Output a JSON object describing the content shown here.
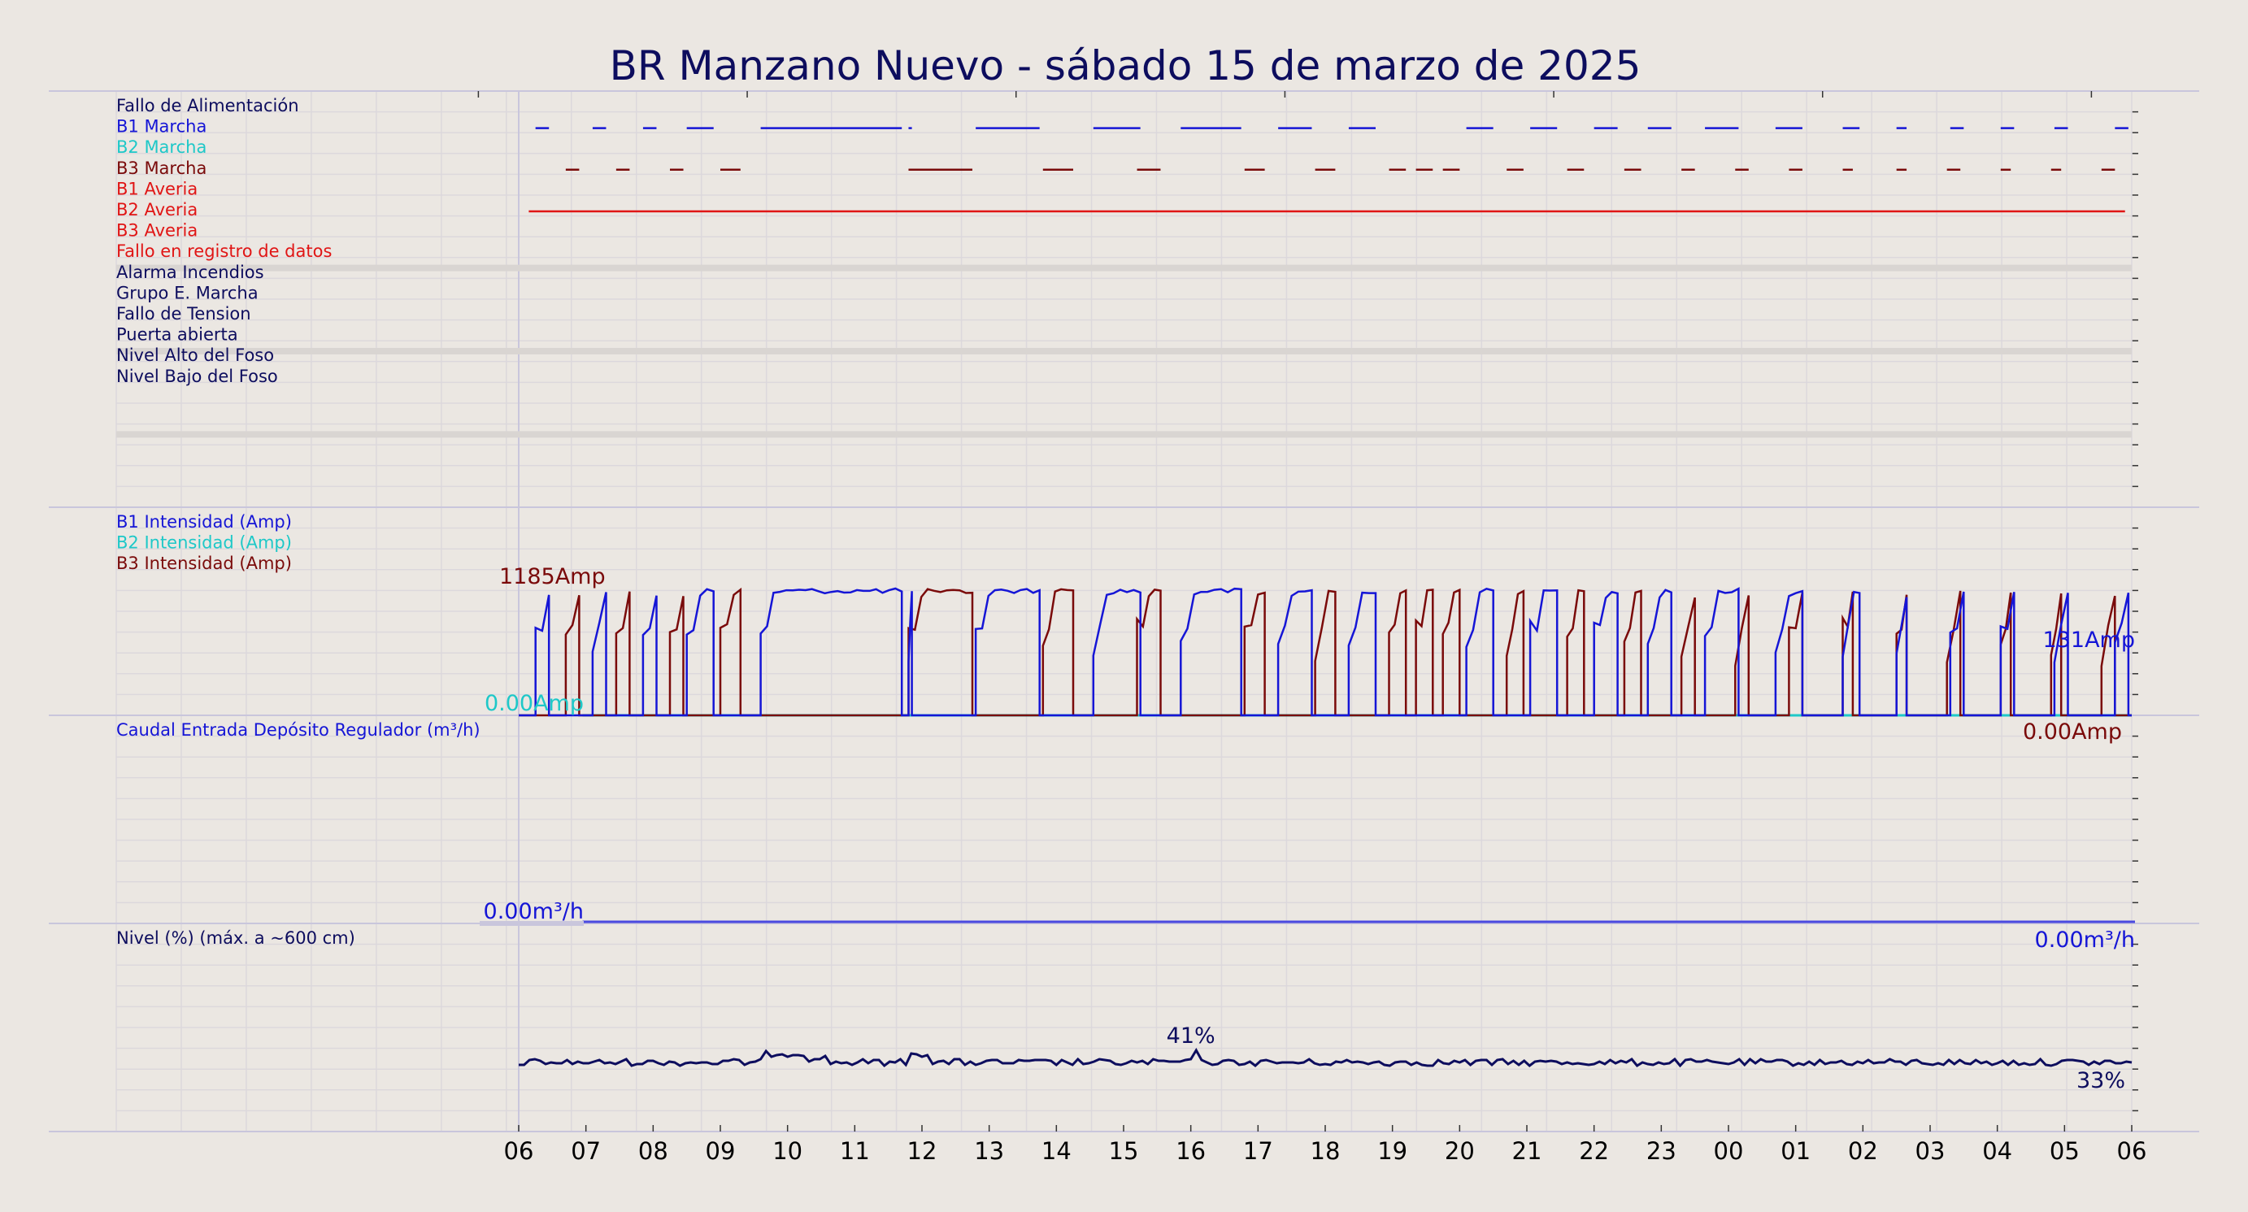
{
  "title": "BR Manzano Nuevo   -   sábado 15 de marzo de 2025",
  "colors": {
    "navy": "#0d0d5e",
    "blue": "#1515d6",
    "cyan": "#1ec8c8",
    "maroon": "#7a0a0a",
    "red": "#e01515",
    "background": "#ebe7e2"
  },
  "chart_data": {
    "type": "line",
    "x_axis": {
      "ticks": [
        "06",
        "07",
        "08",
        "09",
        "10",
        "11",
        "12",
        "13",
        "14",
        "15",
        "16",
        "17",
        "18",
        "19",
        "20",
        "21",
        "22",
        "23",
        "00",
        "01",
        "02",
        "03",
        "04",
        "05",
        "06"
      ],
      "range_hours": [
        0,
        24
      ],
      "grid": true
    },
    "panels": [
      {
        "name": "signals",
        "type": "event-timeline",
        "labels": [
          {
            "text": "Fallo de Alimentación",
            "color": "#0d0d5e"
          },
          {
            "text": "B1 Marcha",
            "color": "#1515d6"
          },
          {
            "text": "B2 Marcha",
            "color": "#1ec8c8"
          },
          {
            "text": "B3 Marcha",
            "color": "#7a0a0a"
          },
          {
            "text": "B1 Averia",
            "color": "#e01515"
          },
          {
            "text": "B2 Averia",
            "color": "#e01515"
          },
          {
            "text": "B3 Averia",
            "color": "#e01515"
          },
          {
            "text": "Fallo en registro de datos",
            "color": "#e01515"
          },
          {
            "text": "Alarma Incendios",
            "color": "#0d0d5e"
          },
          {
            "text": "Grupo E. Marcha",
            "color": "#0d0d5e"
          },
          {
            "text": "Fallo de Tension",
            "color": "#0d0d5e"
          },
          {
            "text": "Puerta abierta",
            "color": "#0d0d5e"
          },
          {
            "text": "Nivel Alto del Foso",
            "color": "#0d0d5e"
          },
          {
            "text": "Nivel Bajo del Foso",
            "color": "#0d0d5e"
          }
        ],
        "events": [
          {
            "signal": "B1 Marcha",
            "intervals": [
              [
                0.25,
                0.45
              ],
              [
                1.1,
                1.3
              ],
              [
                1.85,
                2.05
              ],
              [
                2.5,
                2.9
              ],
              [
                3.6,
                5.7
              ],
              [
                5.8,
                5.85
              ],
              [
                6.8,
                7.75
              ],
              [
                8.55,
                9.25
              ],
              [
                9.85,
                10.75
              ],
              [
                11.3,
                11.8
              ],
              [
                12.35,
                12.75
              ],
              [
                14.1,
                14.5
              ],
              [
                15.05,
                15.45
              ],
              [
                16.0,
                16.35
              ],
              [
                16.8,
                17.15
              ],
              [
                17.65,
                18.15
              ],
              [
                18.7,
                19.1
              ],
              [
                19.7,
                19.95
              ],
              [
                20.5,
                20.65
              ],
              [
                21.3,
                21.5
              ],
              [
                22.05,
                22.25
              ],
              [
                22.85,
                23.05
              ],
              [
                23.75,
                23.95
              ]
            ]
          },
          {
            "signal": "B3 Marcha",
            "intervals": [
              [
                0.7,
                0.9
              ],
              [
                1.45,
                1.65
              ],
              [
                2.25,
                2.45
              ],
              [
                3.0,
                3.3
              ],
              [
                5.8,
                6.75
              ],
              [
                7.8,
                8.25
              ],
              [
                9.2,
                9.55
              ],
              [
                10.8,
                11.1
              ],
              [
                11.85,
                12.15
              ],
              [
                12.95,
                13.2
              ],
              [
                13.35,
                13.6
              ],
              [
                13.75,
                14.0
              ],
              [
                14.7,
                14.95
              ],
              [
                15.6,
                15.85
              ],
              [
                16.45,
                16.7
              ],
              [
                17.3,
                17.5
              ],
              [
                18.1,
                18.3
              ],
              [
                18.9,
                19.1
              ],
              [
                19.7,
                19.85
              ],
              [
                20.5,
                20.65
              ],
              [
                21.25,
                21.45
              ],
              [
                22.05,
                22.2
              ],
              [
                22.8,
                22.95
              ],
              [
                23.55,
                23.75
              ]
            ]
          },
          {
            "signal": "B2 Averia",
            "intervals": [
              [
                0.15,
                23.9
              ]
            ]
          }
        ]
      },
      {
        "name": "intensidad",
        "type": "line",
        "series_labels": [
          {
            "text": "B1 Intensidad (Amp)",
            "color": "#1515d6"
          },
          {
            "text": "B2 Intensidad (Amp)",
            "color": "#1ec8c8"
          },
          {
            "text": "B3 Intensidad (Amp)",
            "color": "#7a0a0a"
          }
        ],
        "annotations": {
          "max": "1185Amp",
          "b2_first": "0.00Amp",
          "b1_last": "131Amp",
          "b3_last": "0.00Amp"
        }
      },
      {
        "name": "caudal",
        "type": "line",
        "series_labels": [
          {
            "text": "Caudal Entrada Depósito Regulador (m³/h)",
            "color": "#1515d6"
          }
        ],
        "annotations": {
          "first": "0.00m³/h",
          "last": "0.00m³/h"
        }
      },
      {
        "name": "nivel",
        "type": "line",
        "series_labels": [
          {
            "text": "Nivel (%) (máx. a ~600 cm)",
            "color": "#0d0d5e"
          }
        ],
        "annotations": {
          "peak": "41%",
          "last": "33%"
        }
      }
    ]
  }
}
